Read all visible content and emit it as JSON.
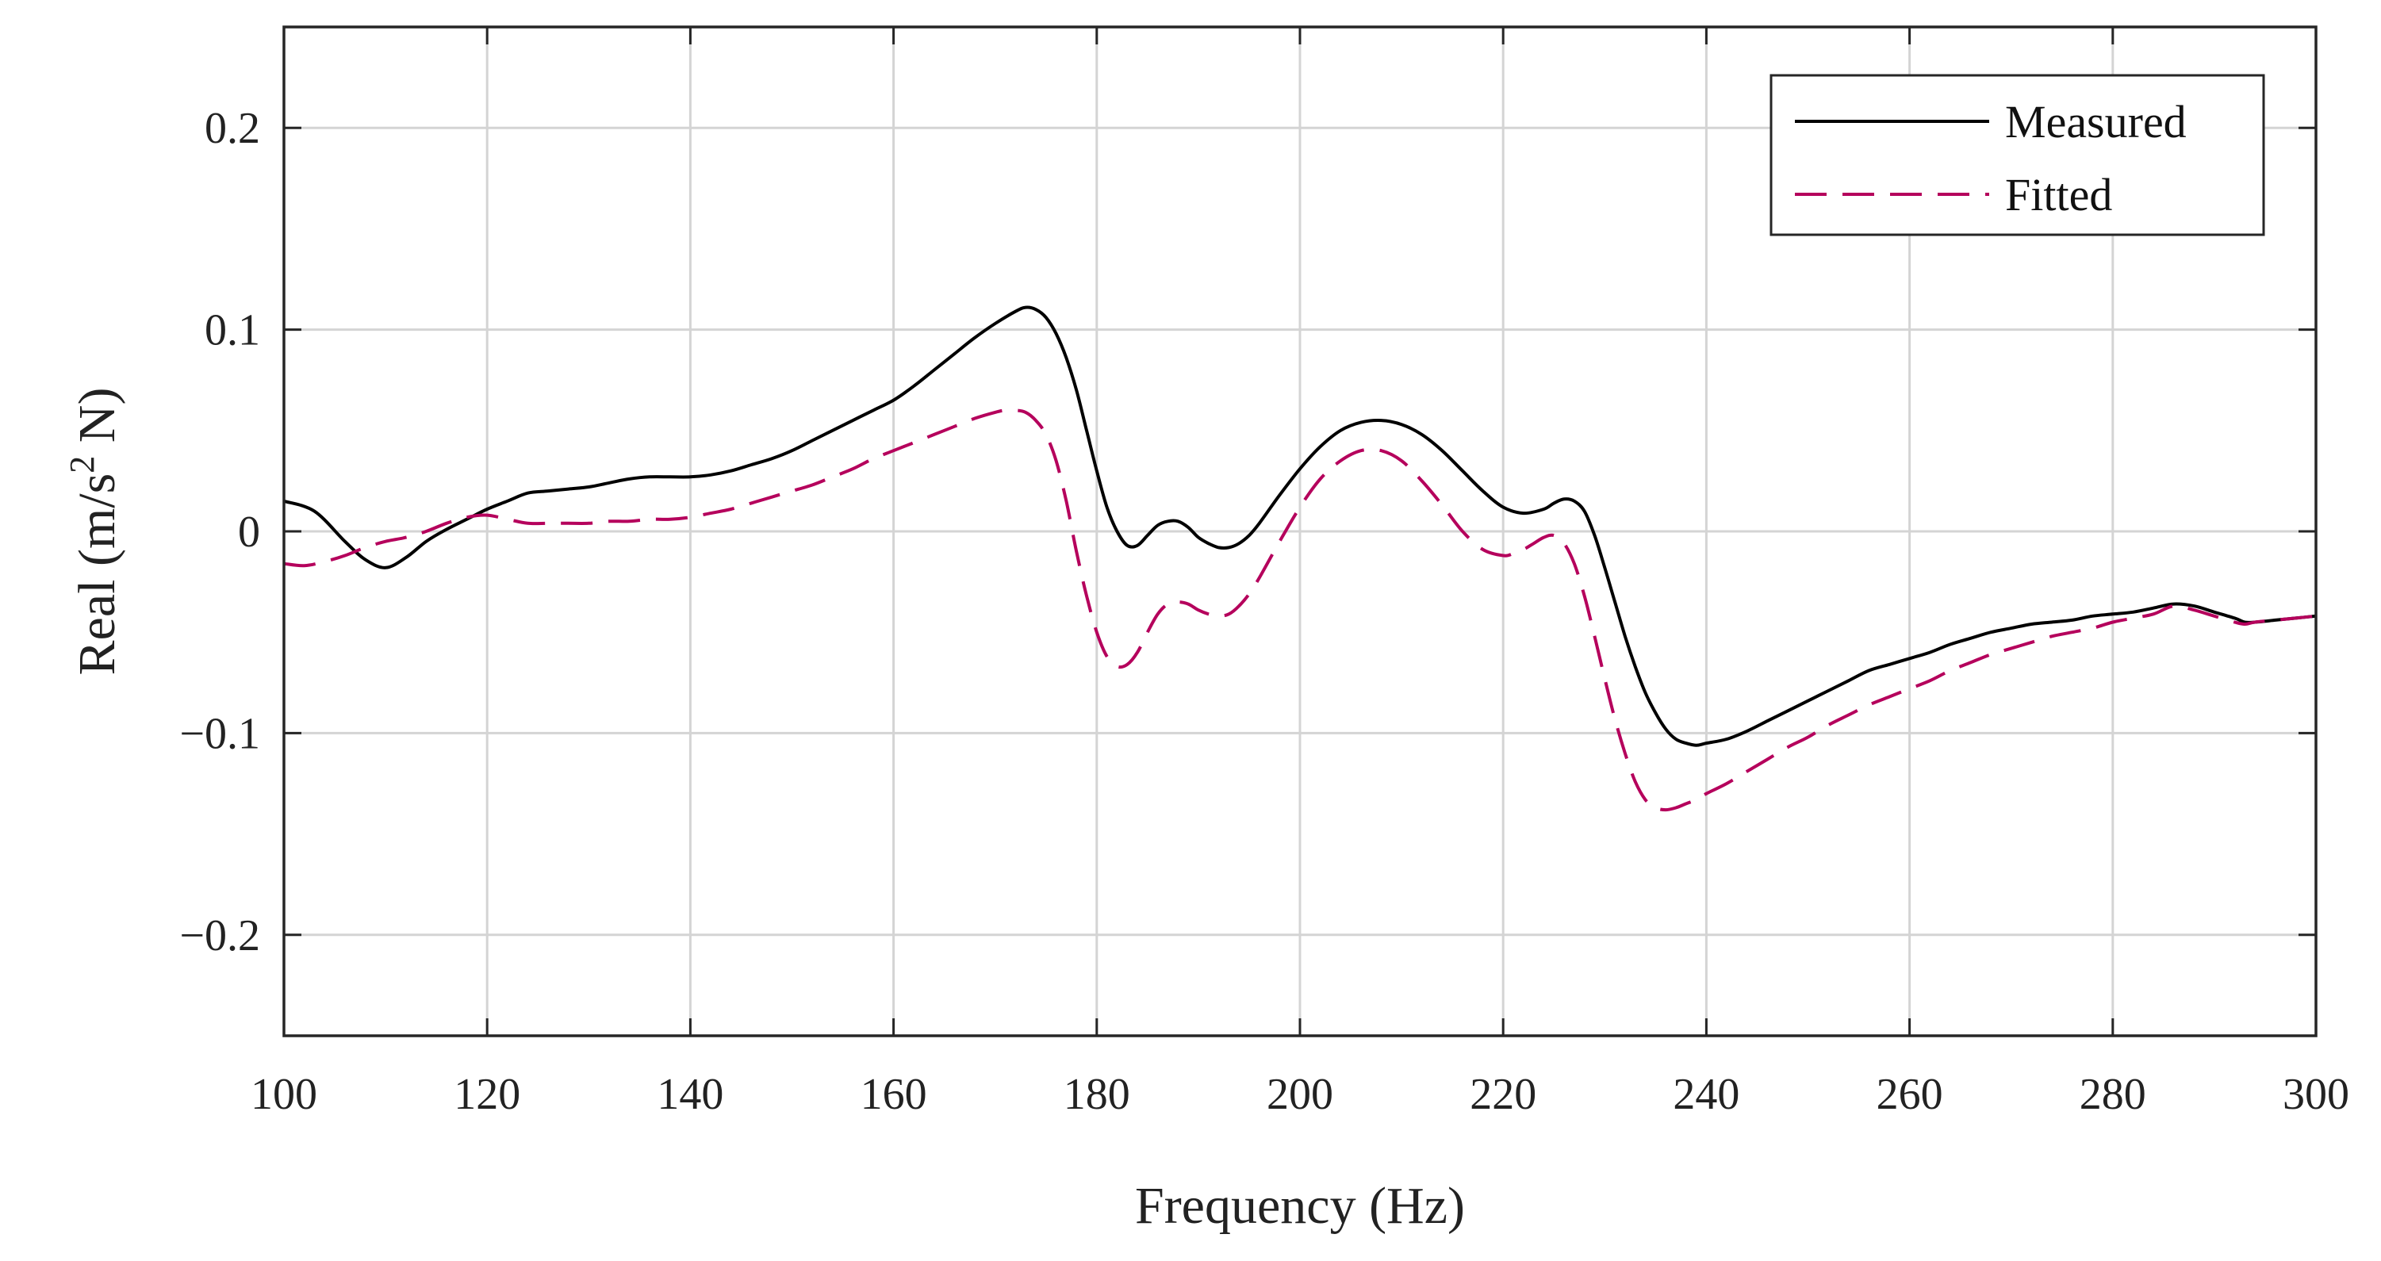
{
  "chart_data": {
    "type": "line",
    "title": "",
    "xlabel": "Frequency (Hz)",
    "ylabel": {
      "pre": "Real (m/s",
      "sup": "2",
      "post": " N)"
    },
    "xlim": [
      100,
      300
    ],
    "ylim": [
      -0.25,
      0.25
    ],
    "grid": true,
    "legend_position": "top-right",
    "x_ticks": [
      100,
      120,
      140,
      160,
      180,
      200,
      220,
      240,
      260,
      280,
      300
    ],
    "x_tick_labels": [
      "100",
      "120",
      "140",
      "160",
      "180",
      "200",
      "220",
      "240",
      "260",
      "280",
      "300"
    ],
    "y_ticks": [
      -0.2,
      -0.1,
      0,
      0.1,
      0.2
    ],
    "y_tick_labels": [
      "−0.2",
      "−0.1",
      "0",
      "0.1",
      "0.2"
    ],
    "series": [
      {
        "name": "Measured",
        "color": "#000000",
        "dash": "solid",
        "x": [
          100,
          103,
          106,
          108,
          110,
          112,
          114,
          116,
          118,
          120,
          122,
          124,
          126,
          128,
          130,
          132,
          134,
          136,
          138,
          140,
          142,
          144,
          146,
          148,
          150,
          152,
          154,
          156,
          158,
          160,
          162,
          164,
          166,
          168,
          170,
          172,
          173,
          174,
          175,
          176,
          177,
          178,
          179,
          180,
          181,
          182,
          183,
          184,
          185,
          186,
          187,
          188,
          189,
          190,
          191,
          192,
          193,
          194,
          195,
          196,
          198,
          200,
          202,
          204,
          206,
          208,
          210,
          212,
          214,
          216,
          218,
          220,
          222,
          224,
          225,
          226,
          227,
          228,
          229,
          230,
          231,
          232,
          233,
          234,
          235,
          236,
          237,
          238,
          239,
          240,
          242,
          244,
          246,
          248,
          250,
          252,
          254,
          256,
          258,
          260,
          262,
          264,
          266,
          268,
          270,
          272,
          274,
          276,
          278,
          280,
          282,
          284,
          286,
          288,
          290,
          292,
          293,
          294,
          296,
          298,
          300
        ],
        "y": [
          0.015,
          0.01,
          -0.005,
          -0.014,
          -0.018,
          -0.013,
          -0.005,
          0.001,
          0.006,
          0.011,
          0.015,
          0.019,
          0.02,
          0.021,
          0.022,
          0.024,
          0.026,
          0.027,
          0.027,
          0.027,
          0.028,
          0.03,
          0.033,
          0.036,
          0.04,
          0.045,
          0.05,
          0.055,
          0.06,
          0.065,
          0.072,
          0.08,
          0.088,
          0.096,
          0.103,
          0.109,
          0.111,
          0.11,
          0.106,
          0.098,
          0.086,
          0.07,
          0.05,
          0.03,
          0.012,
          0.0,
          -0.007,
          -0.007,
          -0.002,
          0.003,
          0.005,
          0.005,
          0.002,
          -0.003,
          -0.006,
          -0.008,
          -0.008,
          -0.006,
          -0.002,
          0.004,
          0.018,
          0.031,
          0.042,
          0.05,
          0.054,
          0.055,
          0.053,
          0.048,
          0.04,
          0.03,
          0.02,
          0.012,
          0.009,
          0.011,
          0.014,
          0.016,
          0.015,
          0.01,
          -0.002,
          -0.018,
          -0.035,
          -0.052,
          -0.067,
          -0.08,
          -0.09,
          -0.098,
          -0.103,
          -0.105,
          -0.106,
          -0.105,
          -0.103,
          -0.099,
          -0.094,
          -0.089,
          -0.084,
          -0.079,
          -0.074,
          -0.069,
          -0.066,
          -0.063,
          -0.06,
          -0.056,
          -0.053,
          -0.05,
          -0.048,
          -0.046,
          -0.045,
          -0.044,
          -0.042,
          -0.041,
          -0.04,
          -0.038,
          -0.036,
          -0.037,
          -0.04,
          -0.043,
          -0.045,
          -0.045,
          -0.044,
          -0.043,
          -0.042
        ]
      },
      {
        "name": "Fitted",
        "color": "#b5005c",
        "dash": "dashed",
        "x": [
          100,
          102,
          104,
          106,
          108,
          110,
          112,
          114,
          116,
          118,
          120,
          122,
          124,
          126,
          128,
          130,
          132,
          134,
          136,
          138,
          140,
          142,
          144,
          146,
          148,
          150,
          152,
          154,
          156,
          158,
          160,
          162,
          164,
          166,
          168,
          170,
          171,
          172,
          173,
          174,
          175,
          176,
          177,
          178,
          179,
          180,
          181,
          182,
          183,
          184,
          185,
          186,
          187,
          188,
          189,
          190,
          191,
          192,
          193,
          194,
          195,
          196,
          198,
          200,
          202,
          204,
          206,
          208,
          210,
          212,
          214,
          216,
          218,
          220,
          221,
          222,
          223,
          224,
          225,
          226,
          227,
          228,
          229,
          230,
          231,
          232,
          233,
          234,
          235,
          236,
          237,
          238,
          239,
          240,
          242,
          244,
          246,
          248,
          250,
          252,
          254,
          256,
          258,
          260,
          262,
          264,
          266,
          268,
          270,
          272,
          274,
          276,
          278,
          280,
          282,
          284,
          286,
          288,
          290,
          292,
          293,
          294,
          296,
          298,
          300
        ],
        "y": [
          -0.016,
          -0.017,
          -0.015,
          -0.012,
          -0.008,
          -0.005,
          -0.003,
          0.0,
          0.004,
          0.007,
          0.008,
          0.006,
          0.004,
          0.004,
          0.004,
          0.004,
          0.005,
          0.005,
          0.006,
          0.006,
          0.007,
          0.009,
          0.011,
          0.014,
          0.017,
          0.02,
          0.023,
          0.027,
          0.031,
          0.036,
          0.04,
          0.044,
          0.048,
          0.052,
          0.056,
          0.059,
          0.06,
          0.06,
          0.059,
          0.055,
          0.048,
          0.035,
          0.015,
          -0.01,
          -0.032,
          -0.05,
          -0.062,
          -0.067,
          -0.066,
          -0.06,
          -0.05,
          -0.041,
          -0.036,
          -0.035,
          -0.036,
          -0.039,
          -0.041,
          -0.042,
          -0.041,
          -0.037,
          -0.031,
          -0.023,
          -0.005,
          0.012,
          0.026,
          0.035,
          0.04,
          0.04,
          0.035,
          0.025,
          0.013,
          0.0,
          -0.009,
          -0.012,
          -0.011,
          -0.009,
          -0.006,
          -0.003,
          -0.002,
          -0.006,
          -0.016,
          -0.032,
          -0.052,
          -0.073,
          -0.093,
          -0.11,
          -0.124,
          -0.133,
          -0.137,
          -0.138,
          -0.137,
          -0.135,
          -0.133,
          -0.13,
          -0.125,
          -0.119,
          -0.113,
          -0.107,
          -0.102,
          -0.096,
          -0.091,
          -0.086,
          -0.082,
          -0.078,
          -0.074,
          -0.069,
          -0.065,
          -0.061,
          -0.058,
          -0.055,
          -0.052,
          -0.05,
          -0.048,
          -0.045,
          -0.043,
          -0.041,
          -0.037,
          -0.039,
          -0.042,
          -0.045,
          -0.046,
          -0.045,
          -0.044,
          -0.043,
          -0.042
        ]
      }
    ]
  }
}
